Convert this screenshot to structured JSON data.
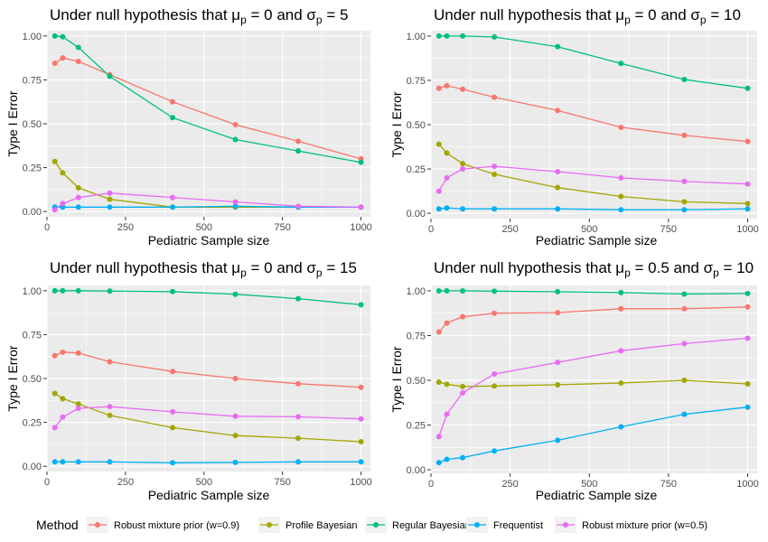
{
  "chart_data": {
    "type": "line",
    "x": [
      25,
      50,
      100,
      200,
      400,
      600,
      800,
      1000
    ],
    "legend": {
      "title": "Method",
      "position": "bottom",
      "entries": [
        {
          "name": "Robust mixture prior (w=0.9)",
          "color": "#F8766D"
        },
        {
          "name": "Profile Bayesian",
          "color": "#A3A500"
        },
        {
          "name": "Regular Bayesian",
          "color": "#00BF7D"
        },
        {
          "name": "Frequentist",
          "color": "#00B0F6"
        },
        {
          "name": "Robust mixture prior (w=0.5)",
          "color": "#E76BF3"
        }
      ]
    },
    "panels": [
      {
        "title_prefix": "Under null hypothesis that ",
        "mu_value": "0",
        "sigma_value": "5",
        "xlabel": "Pediatric Sample size",
        "ylabel": "Type I Error",
        "xlim": [
          0,
          1030
        ],
        "ylim": [
          -0.03,
          1.03
        ],
        "xticks": [
          0,
          250,
          500,
          750,
          1000
        ],
        "yticks": [
          0.0,
          0.25,
          0.5,
          0.75,
          1.0
        ],
        "yticklabels": [
          "0.00",
          "0.25",
          "0.50",
          "0.75",
          "1.00"
        ],
        "series": [
          {
            "name": "Robust mixture prior (w=0.9)",
            "values": [
              0.845,
              0.875,
              0.855,
              0.78,
              0.625,
              0.495,
              0.4,
              0.3
            ]
          },
          {
            "name": "Profile Bayesian",
            "values": [
              0.285,
              0.22,
              0.135,
              0.07,
              0.025,
              0.025,
              0.025,
              0.025
            ]
          },
          {
            "name": "Regular Bayesian",
            "values": [
              1.0,
              0.995,
              0.935,
              0.77,
              0.535,
              0.41,
              0.345,
              0.28
            ]
          },
          {
            "name": "Frequentist",
            "values": [
              0.025,
              0.025,
              0.025,
              0.025,
              0.025,
              0.03,
              0.025,
              0.025
            ]
          },
          {
            "name": "Robust mixture prior (w=0.5)",
            "values": [
              0.01,
              0.045,
              0.08,
              0.105,
              0.08,
              0.055,
              0.03,
              0.025
            ]
          }
        ]
      },
      {
        "title_prefix": "Under null hypothesis that ",
        "mu_value": "0",
        "sigma_value": "10",
        "xlabel": "Pediatric Sample size",
        "ylabel": "Type I Error",
        "xlim": [
          0,
          1030
        ],
        "ylim": [
          -0.03,
          1.03
        ],
        "xticks": [
          0,
          250,
          500,
          750,
          1000
        ],
        "yticks": [
          0.0,
          0.25,
          0.5,
          0.75,
          1.0
        ],
        "yticklabels": [
          "0.00",
          "0.25",
          "0.50",
          "0.75",
          "1.00"
        ],
        "series": [
          {
            "name": "Robust mixture prior (w=0.9)",
            "values": [
              0.705,
              0.72,
              0.7,
              0.655,
              0.58,
              0.485,
              0.44,
              0.405
            ]
          },
          {
            "name": "Profile Bayesian",
            "values": [
              0.39,
              0.34,
              0.28,
              0.22,
              0.145,
              0.095,
              0.065,
              0.055
            ]
          },
          {
            "name": "Regular Bayesian",
            "values": [
              1.0,
              1.0,
              1.0,
              0.995,
              0.94,
              0.845,
              0.755,
              0.705
            ]
          },
          {
            "name": "Frequentist",
            "values": [
              0.025,
              0.03,
              0.025,
              0.025,
              0.025,
              0.02,
              0.02,
              0.025
            ]
          },
          {
            "name": "Robust mixture prior (w=0.5)",
            "values": [
              0.125,
              0.2,
              0.25,
              0.265,
              0.235,
              0.2,
              0.18,
              0.165
            ]
          }
        ]
      },
      {
        "title_prefix": "Under null hypothesis that ",
        "mu_value": "0",
        "sigma_value": "15",
        "xlabel": "Pediatric Sample size",
        "ylabel": "Type I Error",
        "xlim": [
          0,
          1030
        ],
        "ylim": [
          -0.03,
          1.03
        ],
        "xticks": [
          0,
          250,
          500,
          750,
          1000
        ],
        "yticks": [
          0.0,
          0.25,
          0.5,
          0.75,
          1.0
        ],
        "yticklabels": [
          "0.00",
          "0.25",
          "0.50",
          "0.75",
          "1.00"
        ],
        "series": [
          {
            "name": "Robust mixture prior (w=0.9)",
            "values": [
              0.63,
              0.65,
              0.645,
              0.595,
              0.54,
              0.5,
              0.47,
              0.45
            ]
          },
          {
            "name": "Profile Bayesian",
            "values": [
              0.415,
              0.385,
              0.355,
              0.29,
              0.22,
              0.175,
              0.16,
              0.14
            ]
          },
          {
            "name": "Regular Bayesian",
            "values": [
              1.0,
              1.0,
              1.0,
              0.998,
              0.995,
              0.98,
              0.955,
              0.92
            ]
          },
          {
            "name": "Frequentist",
            "values": [
              0.025,
              0.025,
              0.025,
              0.025,
              0.02,
              0.022,
              0.025,
              0.025
            ]
          },
          {
            "name": "Robust mixture prior (w=0.5)",
            "values": [
              0.22,
              0.28,
              0.33,
              0.34,
              0.31,
              0.285,
              0.282,
              0.27
            ]
          }
        ]
      },
      {
        "title_prefix": "Under null hypothesis that ",
        "mu_value": "0.5",
        "sigma_value": "10",
        "xlabel": "Pediatric Sample size",
        "ylabel": "Type I Error",
        "xlim": [
          0,
          1030
        ],
        "ylim": [
          -0.02,
          1.03
        ],
        "xticks": [
          0,
          250,
          500,
          750,
          1000
        ],
        "yticks": [
          0.0,
          0.25,
          0.5,
          0.75,
          1.0
        ],
        "yticklabels": [
          "0.00",
          "0.25",
          "0.50",
          "0.75",
          "1.00"
        ],
        "series": [
          {
            "name": "Robust mixture prior (w=0.9)",
            "values": [
              0.77,
              0.82,
              0.855,
              0.875,
              0.878,
              0.9,
              0.9,
              0.91
            ]
          },
          {
            "name": "Profile Bayesian",
            "values": [
              0.49,
              0.478,
              0.465,
              0.468,
              0.475,
              0.485,
              0.5,
              0.48
            ]
          },
          {
            "name": "Regular Bayesian",
            "values": [
              1.0,
              1.0,
              1.0,
              0.998,
              0.995,
              0.99,
              0.982,
              0.985
            ]
          },
          {
            "name": "Frequentist",
            "values": [
              0.04,
              0.058,
              0.068,
              0.105,
              0.165,
              0.24,
              0.31,
              0.35
            ]
          },
          {
            "name": "Robust mixture prior (w=0.5)",
            "values": [
              0.185,
              0.31,
              0.43,
              0.535,
              0.6,
              0.665,
              0.705,
              0.735
            ]
          }
        ]
      }
    ]
  }
}
